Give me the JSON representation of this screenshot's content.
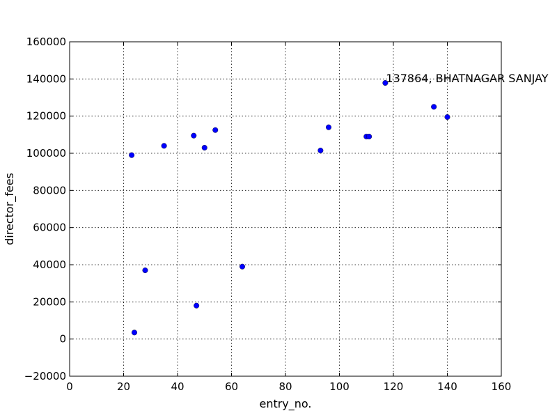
{
  "chart_data": {
    "type": "scatter",
    "title": "",
    "xlabel": "entry_no.",
    "ylabel": "director_fees",
    "xlim": [
      0,
      160
    ],
    "ylim": [
      -20000,
      160000
    ],
    "xticks": [
      0,
      20,
      40,
      60,
      80,
      100,
      120,
      140,
      160
    ],
    "yticks": [
      -20000,
      0,
      20000,
      40000,
      60000,
      80000,
      100000,
      120000,
      140000,
      160000
    ],
    "grid": true,
    "marker_color": "#0000ff",
    "points": [
      {
        "x": 23,
        "y": 99000
      },
      {
        "x": 24,
        "y": 3500
      },
      {
        "x": 28,
        "y": 37000
      },
      {
        "x": 35,
        "y": 104000
      },
      {
        "x": 46,
        "y": 109500
      },
      {
        "x": 47,
        "y": 18000
      },
      {
        "x": 50,
        "y": 103000
      },
      {
        "x": 54,
        "y": 112500
      },
      {
        "x": 64,
        "y": 39000
      },
      {
        "x": 93,
        "y": 101500
      },
      {
        "x": 96,
        "y": 114000
      },
      {
        "x": 110,
        "y": 109000
      },
      {
        "x": 111,
        "y": 109000
      },
      {
        "x": 117,
        "y": 137864
      },
      {
        "x": 135,
        "y": 125000
      },
      {
        "x": 140,
        "y": 119500
      }
    ],
    "annotations": [
      {
        "x": 117,
        "y": 137864,
        "text": "137864, BHATNAGAR SANJAY"
      }
    ]
  }
}
